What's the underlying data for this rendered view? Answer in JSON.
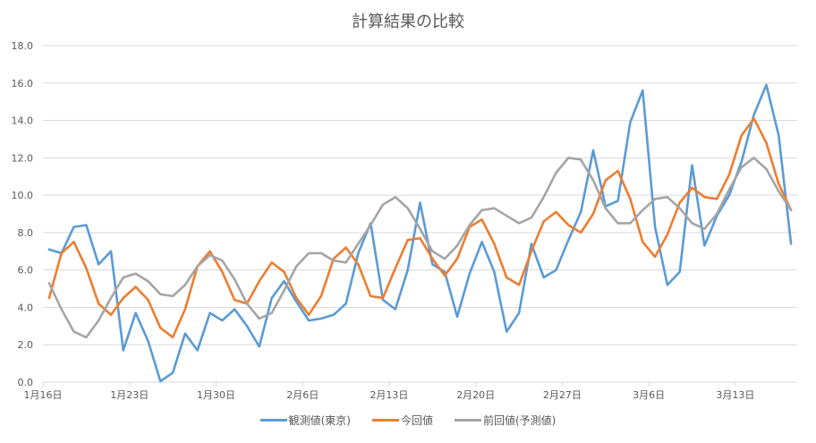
{
  "chart_data": {
    "type": "line",
    "title": "計算結果の比較",
    "xlabel": "",
    "ylabel": "",
    "ylim": [
      0,
      18
    ],
    "yticks": [
      "0.0",
      "2.0",
      "4.0",
      "6.0",
      "8.0",
      "10.0",
      "12.0",
      "14.0",
      "16.0",
      "18.0"
    ],
    "xtick_labels": [
      "1月16日",
      "1月23日",
      "1月30日",
      "2月6日",
      "2月13日",
      "2月20日",
      "2月27日",
      "3月6日",
      "3月13日"
    ],
    "grid": true,
    "legend_position": "bottom",
    "x_start": "1月16日",
    "x_end": "3月17日",
    "n_points": 61,
    "series": [
      {
        "name": "観測値(東京)",
        "color": "#5B9BD5",
        "values": [
          7.1,
          6.9,
          8.3,
          8.4,
          6.3,
          7.0,
          1.7,
          3.7,
          2.2,
          0.05,
          0.5,
          2.6,
          1.7,
          3.7,
          3.3,
          3.9,
          3.0,
          1.9,
          4.5,
          5.4,
          4.3,
          3.3,
          3.4,
          3.6,
          4.2,
          6.9,
          8.5,
          4.4,
          3.9,
          6.0,
          9.6,
          6.3,
          5.9,
          3.5,
          5.8,
          7.5,
          5.9,
          2.7,
          3.7,
          7.4,
          5.6,
          6.0,
          7.6,
          9.1,
          12.4,
          9.4,
          9.7,
          13.9,
          15.6,
          8.3,
          5.2,
          5.9,
          11.6,
          7.3,
          8.9,
          10.0,
          11.8,
          14.3,
          15.9,
          13.2,
          7.4
        ]
      },
      {
        "name": "今回値",
        "color": "#ED7D31",
        "values": [
          4.5,
          6.9,
          7.5,
          6.1,
          4.2,
          3.6,
          4.5,
          5.1,
          4.4,
          2.9,
          2.4,
          3.9,
          6.2,
          7.0,
          5.9,
          4.4,
          4.2,
          5.4,
          6.4,
          5.9,
          4.5,
          3.6,
          4.6,
          6.6,
          7.2,
          6.3,
          4.6,
          4.5,
          6.1,
          7.6,
          7.7,
          6.6,
          5.7,
          6.6,
          8.3,
          8.7,
          7.4,
          5.6,
          5.2,
          7.0,
          8.6,
          9.1,
          8.4,
          8.0,
          9.0,
          10.8,
          11.3,
          9.8,
          7.5,
          6.7,
          7.9,
          9.6,
          10.4,
          9.9,
          9.8,
          11.1,
          13.2,
          14.1,
          12.8,
          10.6,
          9.2
        ]
      },
      {
        "name": "前回値(予測値)",
        "color": "#A5A5A5",
        "values": [
          5.3,
          3.9,
          2.7,
          2.4,
          3.3,
          4.5,
          5.6,
          5.8,
          5.4,
          4.7,
          4.6,
          5.2,
          6.2,
          6.8,
          6.5,
          5.5,
          4.2,
          3.4,
          3.7,
          4.9,
          6.2,
          6.9,
          6.9,
          6.5,
          6.4,
          7.4,
          8.4,
          9.5,
          9.9,
          9.3,
          8.2,
          7.0,
          6.6,
          7.3,
          8.4,
          9.2,
          9.3,
          8.9,
          8.5,
          8.8,
          9.9,
          11.2,
          12.0,
          11.9,
          10.8,
          9.3,
          8.5,
          8.5,
          9.2,
          9.8,
          9.9,
          9.3,
          8.5,
          8.2,
          9.0,
          10.3,
          11.5,
          12.0,
          11.4,
          10.2,
          9.2
        ]
      }
    ]
  },
  "colors": {
    "text": "#595959",
    "grid": "#D9D9D9",
    "axis": "#D9D9D9"
  }
}
